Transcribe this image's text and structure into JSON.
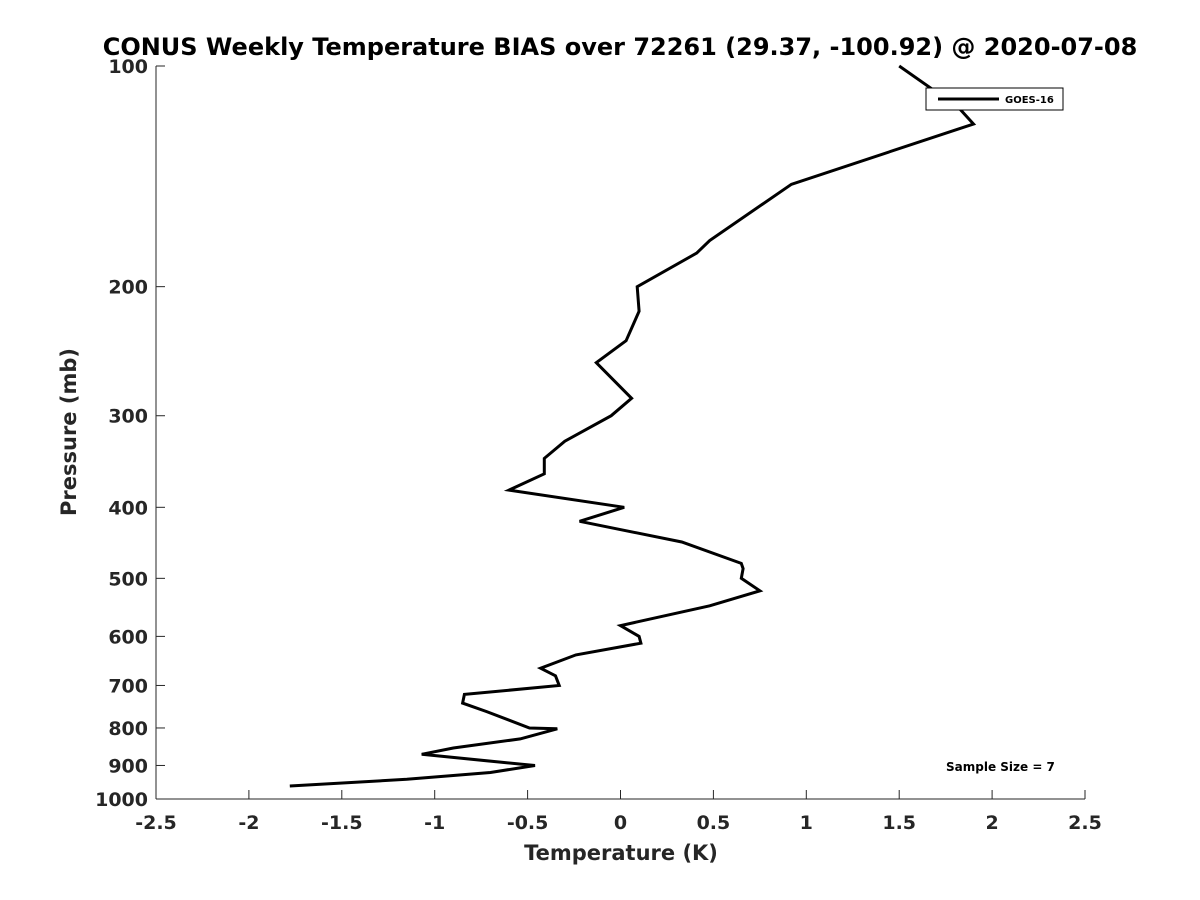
{
  "chart_data": {
    "type": "line",
    "title": "CONUS Weekly Temperature BIAS over 72261 (29.37, -100.92) @ 2020-07-08",
    "xlabel": "Temperature (K)",
    "ylabel": "Pressure (mb)",
    "xlim": [
      -2.5,
      2.5
    ],
    "ylim": [
      100,
      1000
    ],
    "yscale": "log",
    "y_reversed": true,
    "grid": false,
    "legend_position": "top-right",
    "x_ticks": [
      -2.5,
      -2,
      -1.5,
      -1,
      -0.5,
      0,
      0.5,
      1,
      1.5,
      2,
      2.5
    ],
    "x_tick_labels": [
      "-2.5",
      "-2",
      "-1.5",
      "-1",
      "-0.5",
      "0",
      "0.5",
      "1",
      "1.5",
      "2",
      "2.5"
    ],
    "y_ticks": [
      100,
      200,
      300,
      400,
      500,
      600,
      700,
      800,
      900,
      1000
    ],
    "y_tick_labels": [
      "100",
      "200",
      "300",
      "400",
      "500",
      "600",
      "700",
      "800",
      "900",
      "1000"
    ],
    "annotation": "Sample Size = 7",
    "series": [
      {
        "name": "GOES-16",
        "color": "#000000",
        "points": [
          [
            1.5,
            100
          ],
          [
            1.82,
            114
          ],
          [
            1.9,
            120
          ],
          [
            0.92,
            145
          ],
          [
            0.48,
            173
          ],
          [
            0.41,
            180
          ],
          [
            0.09,
            200
          ],
          [
            0.1,
            216
          ],
          [
            0.03,
            237
          ],
          [
            -0.13,
            254
          ],
          [
            0.06,
            284
          ],
          [
            -0.05,
            300
          ],
          [
            -0.3,
            325
          ],
          [
            -0.41,
            343
          ],
          [
            -0.41,
            360
          ],
          [
            -0.6,
            379
          ],
          [
            0.02,
            400
          ],
          [
            -0.22,
            418
          ],
          [
            0.33,
            446
          ],
          [
            0.65,
            477
          ],
          [
            0.66,
            485
          ],
          [
            0.65,
            500
          ],
          [
            0.75,
            520
          ],
          [
            0.48,
            545
          ],
          [
            0.0,
            580
          ],
          [
            0.1,
            600
          ],
          [
            0.11,
            613
          ],
          [
            -0.24,
            636
          ],
          [
            -0.43,
            663
          ],
          [
            -0.35,
            679
          ],
          [
            -0.33,
            700
          ],
          [
            -0.84,
            720
          ],
          [
            -0.85,
            740
          ],
          [
            -0.72,
            760
          ],
          [
            -0.49,
            800
          ],
          [
            -0.34,
            802
          ],
          [
            -0.54,
            828
          ],
          [
            -0.9,
            852
          ],
          [
            -1.07,
            869
          ],
          [
            -0.64,
            891
          ],
          [
            -0.46,
            900
          ],
          [
            -0.7,
            920
          ],
          [
            -1.15,
            940
          ],
          [
            -1.78,
            960
          ]
        ]
      }
    ]
  }
}
